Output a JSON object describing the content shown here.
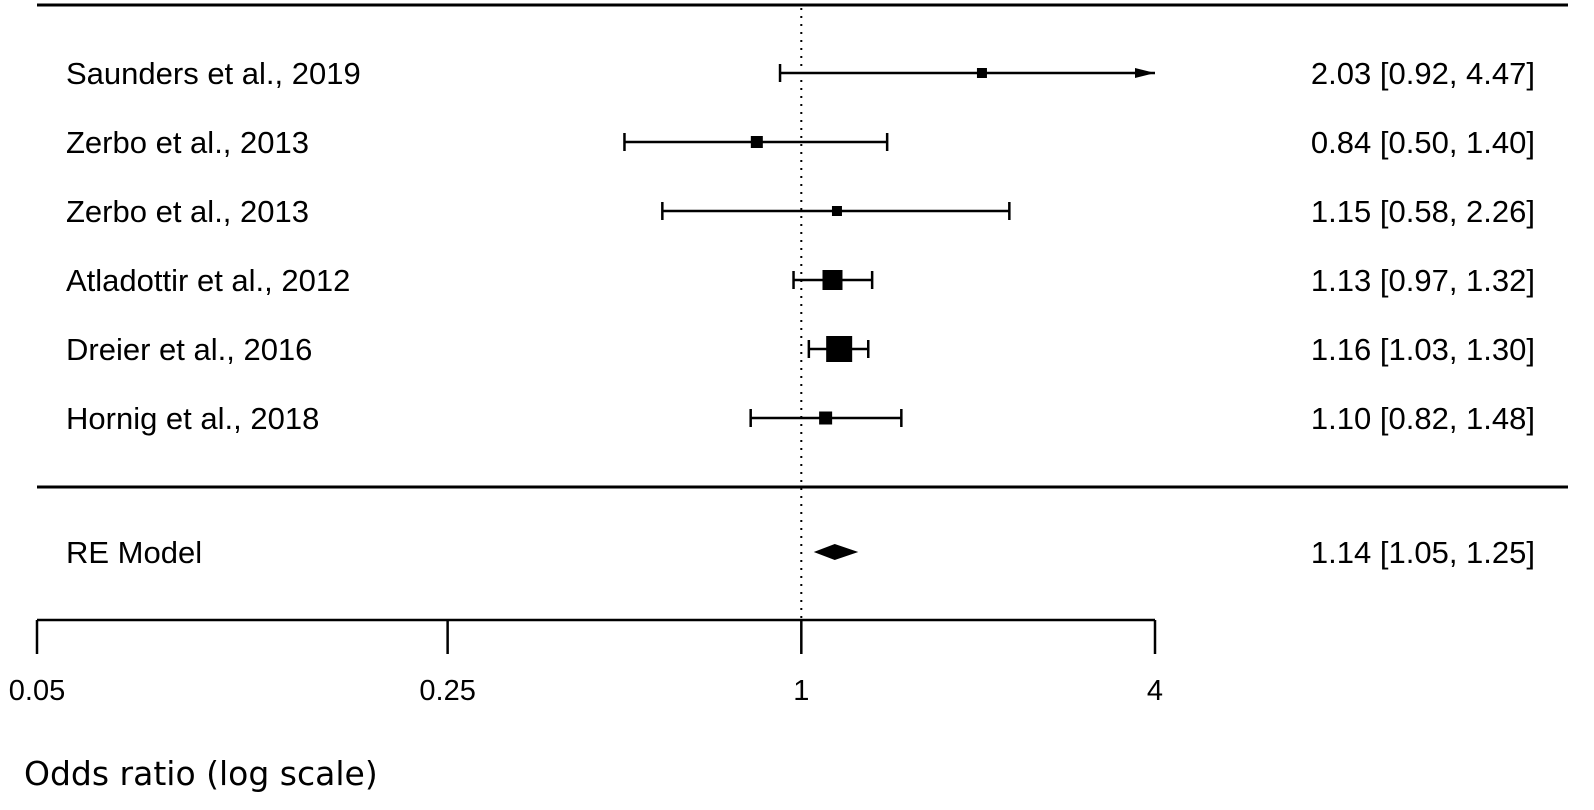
{
  "chart_data": {
    "type": "forest",
    "scale": "log",
    "xlabel": "Odds ratio (log scale)",
    "xticks": [
      0.05,
      0.25,
      1,
      4
    ],
    "xtick_labels": [
      "0.05",
      "0.25",
      "1",
      "4"
    ],
    "xlim": [
      0.05,
      4
    ],
    "reference_line": 1,
    "studies": [
      {
        "label": "Saunders et al., 2019",
        "or": 2.03,
        "lower": 0.92,
        "upper": 4.47,
        "ci_text": "2.03 [0.92, 4.47]",
        "weight": 0.8,
        "clipped_upper": true
      },
      {
        "label": "Zerbo et al., 2013",
        "or": 0.84,
        "lower": 0.5,
        "upper": 1.4,
        "ci_text": "0.84 [0.50, 1.40]",
        "weight": 1.0,
        "clipped_upper": false
      },
      {
        "label": "Zerbo et al., 2013",
        "or": 1.15,
        "lower": 0.58,
        "upper": 2.26,
        "ci_text": "1.15 [0.58, 2.26]",
        "weight": 0.8,
        "clipped_upper": false
      },
      {
        "label": "Atladottir et al., 2012",
        "or": 1.13,
        "lower": 0.97,
        "upper": 1.32,
        "ci_text": "1.13 [0.97, 1.32]",
        "weight": 1.8,
        "clipped_upper": false
      },
      {
        "label": "Dreier et al., 2016",
        "or": 1.16,
        "lower": 1.03,
        "upper": 1.3,
        "ci_text": "1.16 [1.03, 1.30]",
        "weight": 2.4,
        "clipped_upper": false
      },
      {
        "label": "Hornig et al., 2018",
        "or": 1.1,
        "lower": 0.82,
        "upper": 1.48,
        "ci_text": "1.10 [0.82, 1.48]",
        "weight": 1.1,
        "clipped_upper": false
      }
    ],
    "summary": {
      "label": "RE Model",
      "or": 1.14,
      "lower": 1.05,
      "upper": 1.25,
      "ci_text": "1.14 [1.05, 1.25]"
    }
  }
}
